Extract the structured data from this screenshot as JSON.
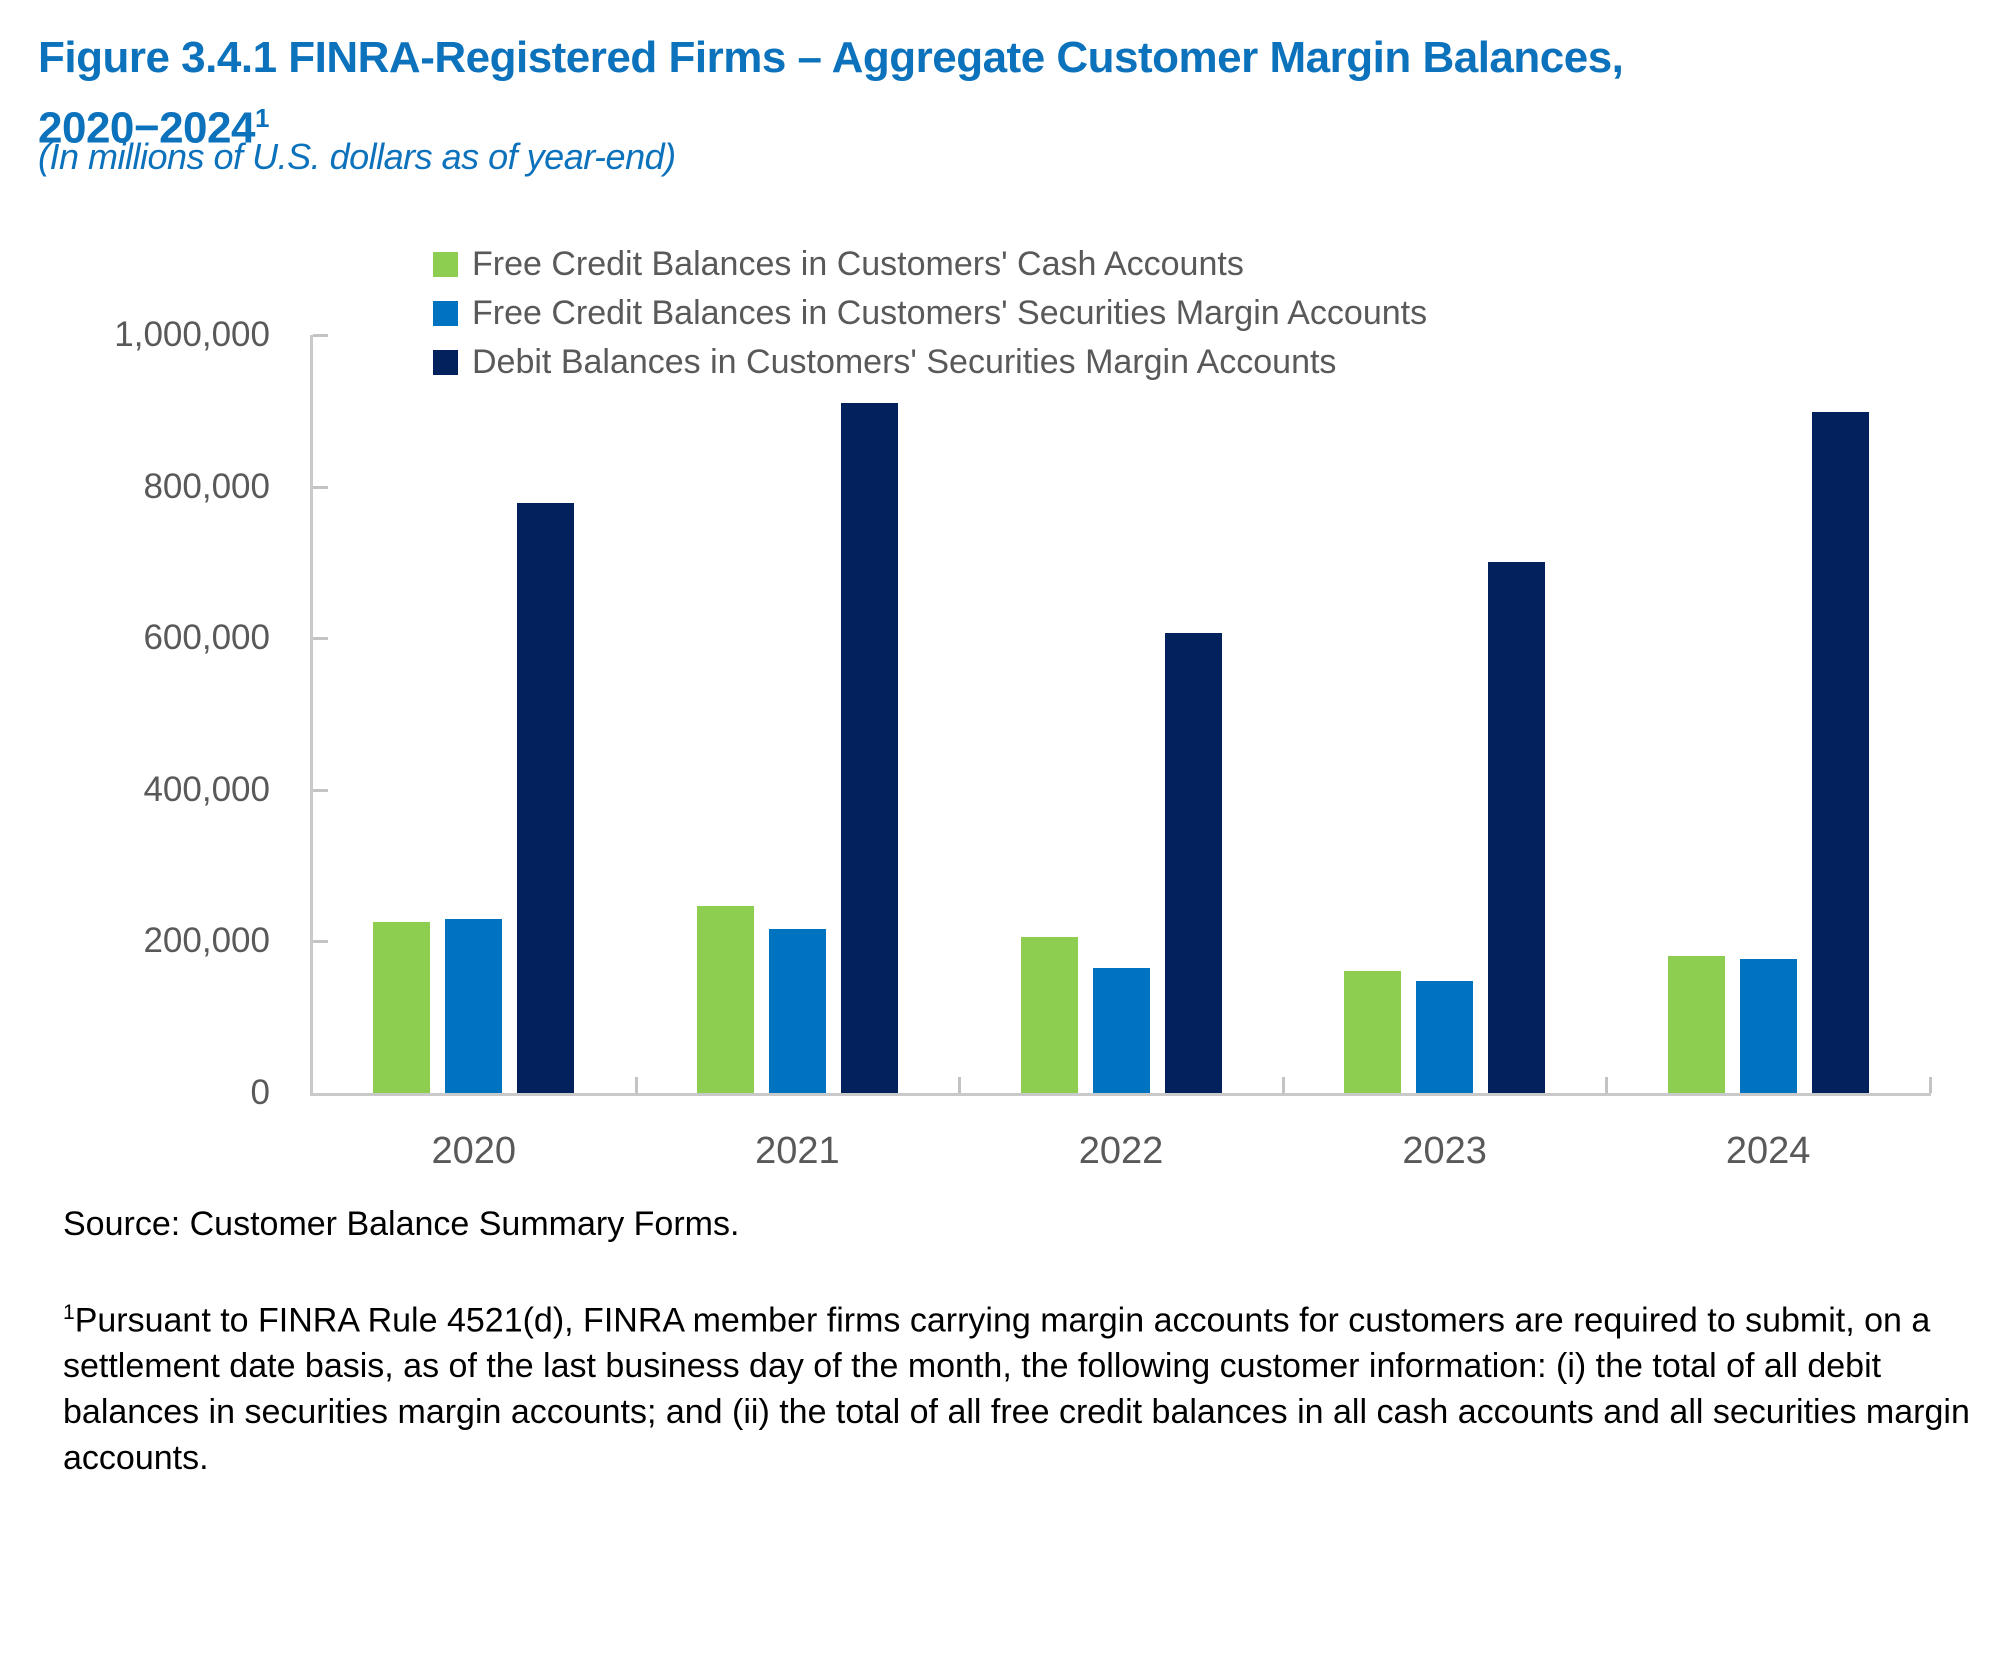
{
  "page": {
    "title_line1": "Figure 3.4.1 FINRA-Registered Firms – Aggregate Customer Margin Balances,",
    "title_line2": "2020−2024",
    "title_superscript": "1",
    "subtitle": "(In millions of U.S. dollars as of year-end)",
    "source": "Source: Customer Balance Summary Forms.",
    "footnote_superscript": "1",
    "footnote": "Pursuant to FINRA Rule 4521(d), FINRA member firms carrying margin accounts for customers are required to submit, on a settlement date basis, as of the last business day of the month, the following customer information: (i) the total of all debit balances in securities margin accounts; and (ii) the total of all free credit balances in all cash accounts and all securities margin accounts."
  },
  "colors": {
    "title_blue": "#0D72BC",
    "label_gray": "#595959",
    "axis_gray": "#C9C9C9",
    "tick_gray": "#C3C3C3",
    "series_green": "#8DCD50",
    "series_blue": "#0073C0",
    "series_navy": "#03215C"
  },
  "chart_data": {
    "type": "bar",
    "title": "FINRA-Registered Firms – Aggregate Customer Margin Balances, 2020–2024",
    "subtitle": "In millions of U.S. dollars as of year-end",
    "categories": [
      "2020",
      "2021",
      "2022",
      "2023",
      "2024"
    ],
    "series": [
      {
        "name": "Free Credit Balances in Customers' Cash Accounts",
        "color": "#8DCD50",
        "values": [
          225000,
          247000,
          206000,
          161000,
          181000
        ]
      },
      {
        "name": "Free Credit Balances in Customers' Securities Margin Accounts",
        "color": "#0073C0",
        "values": [
          229000,
          217000,
          165000,
          148000,
          177000
        ]
      },
      {
        "name": "Debit Balances in Customers' Securities Margin Accounts",
        "color": "#03215C",
        "values": [
          778000,
          910000,
          607000,
          701000,
          899000
        ]
      }
    ],
    "ylim": [
      0,
      1000000
    ],
    "y_tick_step": 200000,
    "y_tick_labels": [
      "0",
      "200,000",
      "400,000",
      "600,000",
      "800,000",
      "1,000,000"
    ],
    "xlabel": "",
    "ylabel": "",
    "grid": false,
    "legend_position": "top"
  }
}
